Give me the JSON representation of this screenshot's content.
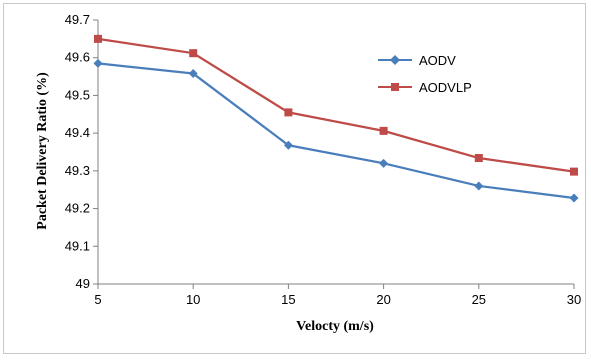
{
  "chart_data": {
    "type": "line",
    "title": "",
    "xlabel": "Velocty (m/s)",
    "ylabel": "Packet Delivery Ratio (%)",
    "x": [
      5,
      10,
      15,
      20,
      25,
      30
    ],
    "xlim": [
      5,
      30
    ],
    "ylim": [
      49,
      49.7
    ],
    "xticks": [
      "5",
      "10",
      "15",
      "20",
      "25",
      "30"
    ],
    "yticks": [
      "49",
      "49.1",
      "49.2",
      "49.3",
      "49.4",
      "49.5",
      "49.6",
      "49.7"
    ],
    "grid": false,
    "legend_position": "top-right",
    "series": [
      {
        "name": "AODV",
        "color": "#4a7ebb",
        "marker": "diamond",
        "values": [
          49.585,
          49.558,
          49.368,
          49.32,
          49.26,
          49.228
        ]
      },
      {
        "name": "AODVLP",
        "color": "#be4b48",
        "marker": "square",
        "values": [
          49.65,
          49.612,
          49.455,
          49.406,
          49.334,
          49.298
        ]
      }
    ]
  }
}
